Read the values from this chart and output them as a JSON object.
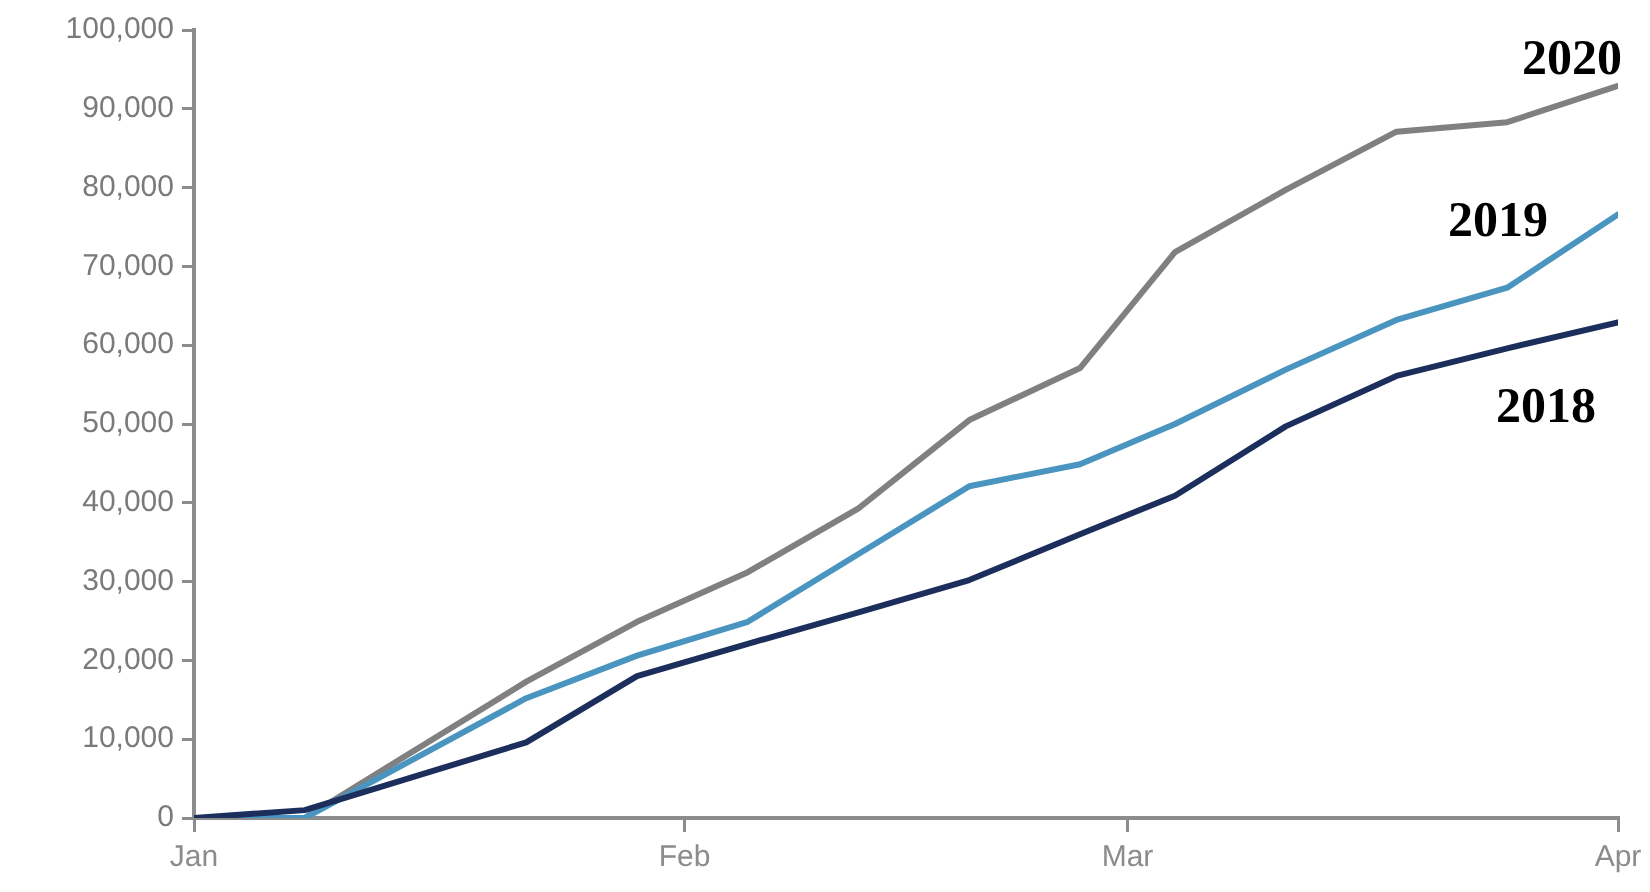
{
  "chart_data": {
    "type": "line",
    "x": [
      "--01-01",
      "--01-08",
      "--01-22",
      "--01-29",
      "--02-05",
      "--02-12",
      "--02-19",
      "--02-26",
      "--03-04",
      "--03-11",
      "--03-18",
      "--03-25",
      "--04-01"
    ],
    "series": [
      {
        "name": "2018",
        "color": "#1c2e5c",
        "values": [
          0,
          1000,
          9600,
          18000,
          22100,
          26100,
          30200,
          36000,
          40900,
          49700,
          56100,
          59600,
          62900
        ]
      },
      {
        "name": "2019",
        "color": "#4a95c0",
        "values": [
          0,
          0,
          15200,
          20600,
          24900,
          33500,
          42100,
          44900,
          50000,
          56900,
          63200,
          67300,
          76600
        ]
      },
      {
        "name": "2020",
        "color": "#808080",
        "values": [
          0,
          0,
          17300,
          24900,
          31200,
          39300,
          50500,
          57100,
          71800,
          79700,
          87100,
          88300,
          92900
        ]
      }
    ],
    "xlim": [
      "--01-01",
      "--04-01"
    ],
    "xticks": [
      {
        "value": "--01-01",
        "label": "Jan"
      },
      {
        "value": "--02-01",
        "label": "Feb"
      },
      {
        "value": "--03-01",
        "label": "Mar"
      },
      {
        "value": "--04-01",
        "label": "Apr"
      }
    ],
    "ylim": [
      0,
      100000
    ],
    "yticks": [
      {
        "value": 0,
        "label": "0"
      },
      {
        "value": 10000,
        "label": "10,000"
      },
      {
        "value": 20000,
        "label": "20,000"
      },
      {
        "value": 30000,
        "label": "30,000"
      },
      {
        "value": 40000,
        "label": "40,000"
      },
      {
        "value": 50000,
        "label": "50,000"
      },
      {
        "value": 60000,
        "label": "60,000"
      },
      {
        "value": 70000,
        "label": "70,000"
      },
      {
        "value": 80000,
        "label": "80,000"
      },
      {
        "value": 90000,
        "label": "90,000"
      },
      {
        "value": 100000,
        "label": "100,000"
      }
    ],
    "grid": false,
    "legend": false,
    "marker": "none",
    "line_style": "solid"
  }
}
